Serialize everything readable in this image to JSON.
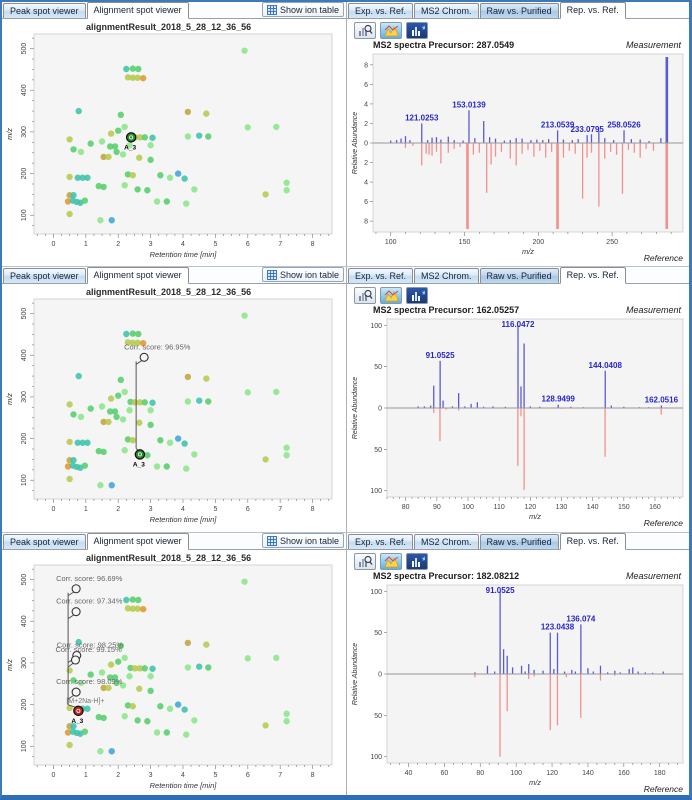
{
  "labels": {
    "show_ion_table": "Show ion table",
    "measurement": "Measurement",
    "reference": "Reference"
  },
  "left_tabs": [
    {
      "label": "Peak spot viewer",
      "selected": false
    },
    {
      "label": "Alignment spot viewer",
      "selected": true
    }
  ],
  "right_tabs": [
    {
      "label": "Exp. vs. Ref.",
      "selected": false
    },
    {
      "label": "MS2 Chrom.",
      "selected": false
    },
    {
      "label": "Raw vs. Purified",
      "selected": false,
      "dark": true
    },
    {
      "label": "Rep. vs. Ref.",
      "selected": true
    }
  ],
  "toolbar_icons": [
    "chart-zoom",
    "chart-color",
    "chart-pin"
  ],
  "scatter": {
    "title": "alignmentResult_2018_5_28_12_36_56",
    "xlabel": "Retention time [min]",
    "ylabel": "m/z",
    "xlim": [
      -0.6,
      8.6
    ],
    "ylim": [
      55,
      535
    ],
    "xticks": [
      0,
      1,
      2,
      3,
      4,
      5,
      6,
      7,
      8
    ],
    "yticks": [
      100,
      200,
      300,
      400,
      500
    ],
    "palette": {
      "g": "#57cf6c",
      "g2": "#8be68a",
      "t": "#3fc3ad",
      "b": "#3fa6da",
      "y": "#b7cb4d",
      "o": "#de9a30",
      "ol": "#bfa53d"
    },
    "points": [
      [
        5.9,
        495,
        "g2"
      ],
      [
        2.25,
        451,
        "t"
      ],
      [
        2.45,
        452,
        "g"
      ],
      [
        2.62,
        451,
        "g"
      ],
      [
        2.3,
        431,
        "y"
      ],
      [
        2.45,
        430,
        "y"
      ],
      [
        2.6,
        430,
        "y"
      ],
      [
        2.77,
        429,
        "o"
      ],
      [
        0.78,
        350,
        "t"
      ],
      [
        2.08,
        341,
        "g"
      ],
      [
        4.15,
        348,
        "ol"
      ],
      [
        4.72,
        344,
        "y"
      ],
      [
        2.2,
        312,
        "g2"
      ],
      [
        6.0,
        311,
        "g2"
      ],
      [
        6.88,
        312,
        "g2"
      ],
      [
        1.78,
        296,
        "y"
      ],
      [
        2.0,
        303,
        "g"
      ],
      [
        2.38,
        288,
        "g"
      ],
      [
        2.52,
        287,
        "y"
      ],
      [
        2.67,
        287,
        "y"
      ],
      [
        2.82,
        287,
        "g"
      ],
      [
        3.06,
        286,
        "t"
      ],
      [
        4.15,
        289,
        "g2"
      ],
      [
        4.5,
        291,
        "t"
      ],
      [
        4.78,
        289,
        "g"
      ],
      [
        0.5,
        282,
        "y"
      ],
      [
        1.15,
        272,
        "g"
      ],
      [
        1.5,
        277,
        "g2"
      ],
      [
        1.75,
        265,
        "g"
      ],
      [
        1.9,
        265,
        "g"
      ],
      [
        2.35,
        268,
        "g2"
      ],
      [
        3.0,
        268,
        "g2"
      ],
      [
        0.62,
        258,
        "g"
      ],
      [
        0.85,
        252,
        "g2"
      ],
      [
        1.95,
        252,
        "g"
      ],
      [
        2.15,
        246,
        "g2"
      ],
      [
        1.55,
        240,
        "ol"
      ],
      [
        1.7,
        240,
        "y"
      ],
      [
        2.65,
        238,
        "y"
      ],
      [
        3.0,
        233,
        "g"
      ],
      [
        3.85,
        200,
        "b"
      ],
      [
        0.5,
        192,
        "y"
      ],
      [
        0.75,
        190,
        "t"
      ],
      [
        0.9,
        190,
        "t"
      ],
      [
        1.05,
        190,
        "t"
      ],
      [
        2.3,
        198,
        "g"
      ],
      [
        2.45,
        196,
        "y"
      ],
      [
        3.3,
        196,
        "g"
      ],
      [
        3.6,
        190,
        "g2"
      ],
      [
        4.05,
        188,
        "t"
      ],
      [
        1.4,
        170,
        "g"
      ],
      [
        1.55,
        168,
        "g"
      ],
      [
        2.2,
        172,
        "g2"
      ],
      [
        2.6,
        162,
        "g"
      ],
      [
        2.9,
        160,
        "g"
      ],
      [
        4.35,
        162,
        "g2"
      ],
      [
        0.5,
        148,
        "ol"
      ],
      [
        0.62,
        148,
        "t"
      ],
      [
        0.45,
        133,
        "o"
      ],
      [
        0.6,
        135,
        "t"
      ],
      [
        0.72,
        132,
        "t"
      ],
      [
        0.83,
        130,
        "t"
      ],
      [
        0.97,
        135,
        "g"
      ],
      [
        3.2,
        133,
        "g2"
      ],
      [
        3.5,
        133,
        "g"
      ],
      [
        4.1,
        128,
        "g2"
      ],
      [
        0.5,
        103,
        "y"
      ],
      [
        1.45,
        88,
        "g2"
      ],
      [
        1.8,
        88,
        "b"
      ],
      [
        6.55,
        150,
        "y"
      ],
      [
        7.2,
        178,
        "g2"
      ],
      [
        7.2,
        160,
        "g2"
      ]
    ]
  },
  "panels": [
    {
      "scatter_overlay": {
        "selected": [
          {
            "x": 2.4,
            "y": 287,
            "color": "#2e8b2e",
            "label": "A_3"
          }
        ],
        "annotations": []
      },
      "spectrum": {
        "precursor_label": "MS2 spectra Precursor: 287.0549",
        "ylabel": "Relative Abundance",
        "xlabel": "m/z",
        "ymax": 8.8,
        "yticks": [
          2,
          4,
          6,
          8
        ],
        "xlim": [
          88,
          298
        ],
        "xticks": [
          100,
          150,
          200,
          250
        ],
        "xminor": 10,
        "left_margin": 26,
        "measurement": [
          [
            100,
            0.25
          ],
          [
            104,
            0.3
          ],
          [
            107,
            0.45
          ],
          [
            110,
            0.7
          ],
          [
            113,
            0.3
          ],
          [
            121.0253,
            2.0,
            "121.0253"
          ],
          [
            125,
            0.3
          ],
          [
            128,
            0.55
          ],
          [
            131,
            0.6
          ],
          [
            134,
            0.35
          ],
          [
            139,
            0.65
          ],
          [
            143,
            0.3
          ],
          [
            149,
            0.25
          ],
          [
            153.0139,
            3.35,
            "153.0139"
          ],
          [
            157,
            0.5
          ],
          [
            163,
            2.25
          ],
          [
            167,
            0.6
          ],
          [
            171,
            0.45
          ],
          [
            177,
            0.25
          ],
          [
            181,
            0.3
          ],
          [
            185,
            0.5
          ],
          [
            189,
            0.45
          ],
          [
            195,
            0.3
          ],
          [
            199,
            0.35
          ],
          [
            203,
            0.3
          ],
          [
            207,
            0.4
          ],
          [
            213.0539,
            1.3,
            "213.0539"
          ],
          [
            217,
            0.35
          ],
          [
            223,
            0.3
          ],
          [
            227,
            0.4
          ],
          [
            233.0795,
            0.8,
            "233.0795"
          ],
          [
            236,
            0.9
          ],
          [
            241,
            1.25
          ],
          [
            245,
            0.5
          ],
          [
            251,
            0.3
          ],
          [
            258.0526,
            1.3,
            "258.0526"
          ],
          [
            263,
            0.4
          ],
          [
            269,
            0.35
          ],
          [
            275,
            0.2
          ],
          [
            283,
            0.5
          ],
          [
            287.0549,
            8.8
          ]
        ],
        "reference": [
          [
            110,
            0.5
          ],
          [
            115,
            0.3
          ],
          [
            121,
            2.3
          ],
          [
            124,
            1.1
          ],
          [
            126,
            1.2
          ],
          [
            128,
            1.3
          ],
          [
            131,
            0.9
          ],
          [
            134,
            2.1
          ],
          [
            139,
            1.0
          ],
          [
            143,
            0.6
          ],
          [
            147,
            0.4
          ],
          [
            152,
            8.8
          ],
          [
            156,
            1.2
          ],
          [
            160,
            1.0
          ],
          [
            165,
            5.1
          ],
          [
            168,
            2.2
          ],
          [
            171,
            1.4
          ],
          [
            175,
            0.9
          ],
          [
            181,
            1.6
          ],
          [
            185,
            2.3
          ],
          [
            189,
            1.1
          ],
          [
            193,
            0.7
          ],
          [
            197,
            1.4
          ],
          [
            201,
            0.8
          ],
          [
            205,
            1.5
          ],
          [
            209,
            0.9
          ],
          [
            213,
            8.8
          ],
          [
            217,
            1.5
          ],
          [
            221,
            0.8
          ],
          [
            225,
            1.1
          ],
          [
            230,
            5.7
          ],
          [
            233,
            1.5
          ],
          [
            236,
            1.0
          ],
          [
            241,
            6.5
          ],
          [
            245,
            1.6
          ],
          [
            249,
            0.9
          ],
          [
            253,
            1.2
          ],
          [
            257,
            5.2
          ],
          [
            261,
            0.7
          ],
          [
            265,
            1.0
          ],
          [
            269,
            1.5
          ],
          [
            273,
            0.6
          ],
          [
            278,
            0.8
          ],
          [
            287,
            8.8
          ]
        ]
      }
    },
    {
      "scatter_overlay": {
        "selected": [
          {
            "x": 2.67,
            "y": 162,
            "color": "#2e8b2e",
            "label": "A_3"
          }
        ],
        "annotations": [
          {
            "x": 2.8,
            "y": 395,
            "text": "Corr. score: 96.95%"
          }
        ]
      },
      "spectrum": {
        "precursor_label": "MS2 spectra Precursor: 162.05257",
        "ylabel": "Relative Abundance",
        "xlabel": "m/z",
        "ymax": 104,
        "yticks": [
          50,
          100
        ],
        "xlim": [
          74,
          169
        ],
        "xticks": [
          80,
          90,
          100,
          110,
          120,
          130,
          140,
          150,
          160
        ],
        "xminor": 2,
        "left_margin": 40,
        "measurement": [
          [
            84,
            2
          ],
          [
            86,
            2
          ],
          [
            88,
            3
          ],
          [
            89,
            27
          ],
          [
            91.0525,
            57,
            "91.0525"
          ],
          [
            92,
            9
          ],
          [
            95,
            2
          ],
          [
            97,
            18
          ],
          [
            99,
            2
          ],
          [
            101,
            5
          ],
          [
            103,
            7
          ],
          [
            105,
            1.5
          ],
          [
            108,
            2
          ],
          [
            112,
            1.5
          ],
          [
            116.0472,
            100,
            "116.0472"
          ],
          [
            117,
            26
          ],
          [
            118,
            78
          ],
          [
            120,
            2
          ],
          [
            123,
            1.5
          ],
          [
            128.9499,
            4,
            "128.9499"
          ],
          [
            133,
            1.5
          ],
          [
            137,
            1
          ],
          [
            144.0408,
            45,
            "144.0408"
          ],
          [
            146,
            3
          ],
          [
            150,
            1.5
          ],
          [
            155,
            1
          ],
          [
            158,
            1
          ],
          [
            162.0516,
            3,
            "162.0516"
          ]
        ],
        "reference": [
          [
            89,
            6
          ],
          [
            91,
            40
          ],
          [
            93,
            2
          ],
          [
            97,
            3
          ],
          [
            116,
            70
          ],
          [
            117,
            10
          ],
          [
            118,
            99
          ],
          [
            130,
            1
          ],
          [
            144,
            59
          ],
          [
            162,
            8
          ]
        ]
      }
    },
    {
      "scatter_overlay": {
        "selected": [
          {
            "x": 0.77,
            "y": 185,
            "color": "#cc2222",
            "label": "A_3",
            "adduct": "[M+2Na-H]+"
          }
        ],
        "annotations": [
          {
            "x": 0.7,
            "y": 478,
            "text": "Corr. score: 96.69%"
          },
          {
            "x": 0.7,
            "y": 423,
            "text": "Corr. score: 97.34%"
          },
          {
            "x": 0.72,
            "y": 318,
            "text": "Corr. score: 98.25%"
          },
          {
            "x": 0.68,
            "y": 307,
            "text": "Corr. score: 99.15%"
          },
          {
            "x": 0.7,
            "y": 230,
            "text": "Corr. score: 98.09%"
          }
        ]
      },
      "spectrum": {
        "precursor_label": "MS2 spectra Precursor: 182.08212",
        "ylabel": "Relative Abundance",
        "xlabel": "m/z",
        "ymax": 104,
        "yticks": [
          50,
          100
        ],
        "xlim": [
          28,
          193
        ],
        "xticks": [
          40,
          60,
          80,
          100,
          120,
          140,
          160,
          180
        ],
        "xminor": 5,
        "left_margin": 40,
        "measurement": [
          [
            77,
            2
          ],
          [
            84,
            10
          ],
          [
            88,
            3
          ],
          [
            91.0525,
            100,
            "91.0525"
          ],
          [
            93,
            30
          ],
          [
            95,
            22
          ],
          [
            98,
            8
          ],
          [
            103,
            10
          ],
          [
            105,
            3
          ],
          [
            107,
            12
          ],
          [
            110,
            5
          ],
          [
            115,
            4
          ],
          [
            119,
            50
          ],
          [
            121,
            6
          ],
          [
            123.0438,
            50,
            "123.0438"
          ],
          [
            127,
            3
          ],
          [
            131,
            5
          ],
          [
            133,
            3
          ],
          [
            136.074,
            60,
            "136.074"
          ],
          [
            140,
            7
          ],
          [
            143,
            3
          ],
          [
            147,
            10
          ],
          [
            151,
            2
          ],
          [
            155,
            4
          ],
          [
            158,
            2
          ],
          [
            163,
            6
          ],
          [
            165,
            8
          ],
          [
            168,
            3
          ],
          [
            172,
            2
          ],
          [
            176,
            1.5
          ],
          [
            182,
            3
          ]
        ],
        "reference": [
          [
            77,
            4
          ],
          [
            91,
            100
          ],
          [
            95,
            45
          ],
          [
            107,
            6
          ],
          [
            110,
            3
          ],
          [
            119,
            68
          ],
          [
            123,
            62
          ],
          [
            128,
            4
          ],
          [
            136,
            53
          ],
          [
            147,
            8
          ],
          [
            155,
            2
          ]
        ]
      }
    }
  ]
}
